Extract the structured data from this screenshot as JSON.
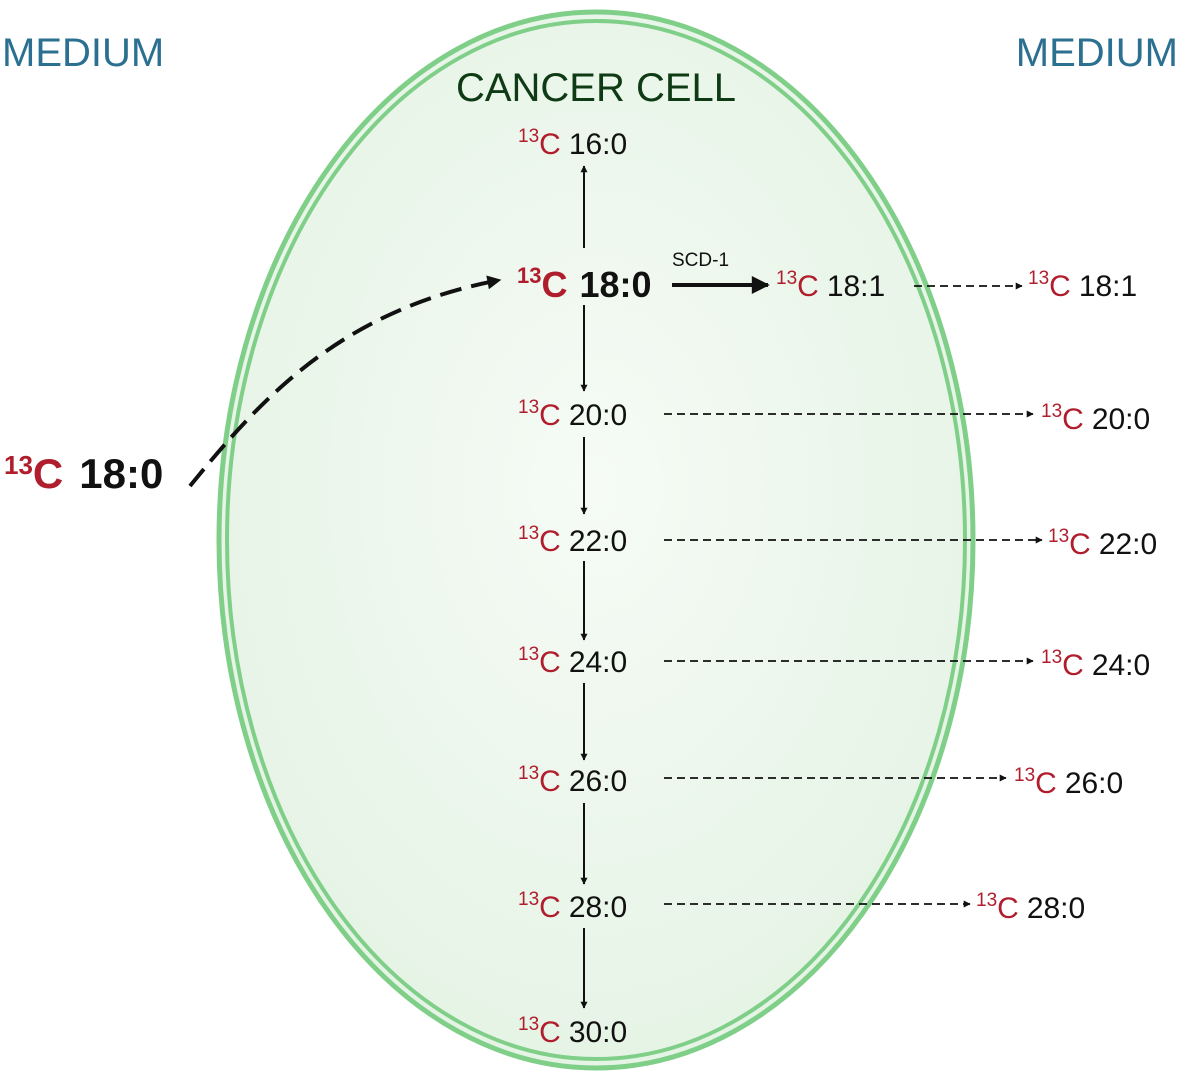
{
  "media": {
    "left_label": "MEDIUM",
    "right_label": "MEDIUM"
  },
  "cell": {
    "title": "CANCER CELL"
  },
  "isotope": {
    "mass": "13",
    "element": "C"
  },
  "colors": {
    "medium_text": "#2b6f91",
    "cell_title": "#0f3b14",
    "isotope_red": "#b01d2d",
    "membrane_green": "#7fcf89",
    "cell_fill": "#e9f5e9"
  },
  "source": {
    "fatty_acid": "18:0"
  },
  "inside": {
    "c16": "16:0",
    "c18": "18:0",
    "c18_1": "18:1",
    "c20": "20:0",
    "c22": "22:0",
    "c24": "24:0",
    "c26": "26:0",
    "c28": "28:0",
    "c30": "30:0"
  },
  "enzyme": {
    "label": "SCD-1"
  },
  "outside": {
    "c18_1": "18:1",
    "c20": "20:0",
    "c22": "22:0",
    "c24": "24:0",
    "c26": "26:0",
    "c28": "28:0"
  }
}
